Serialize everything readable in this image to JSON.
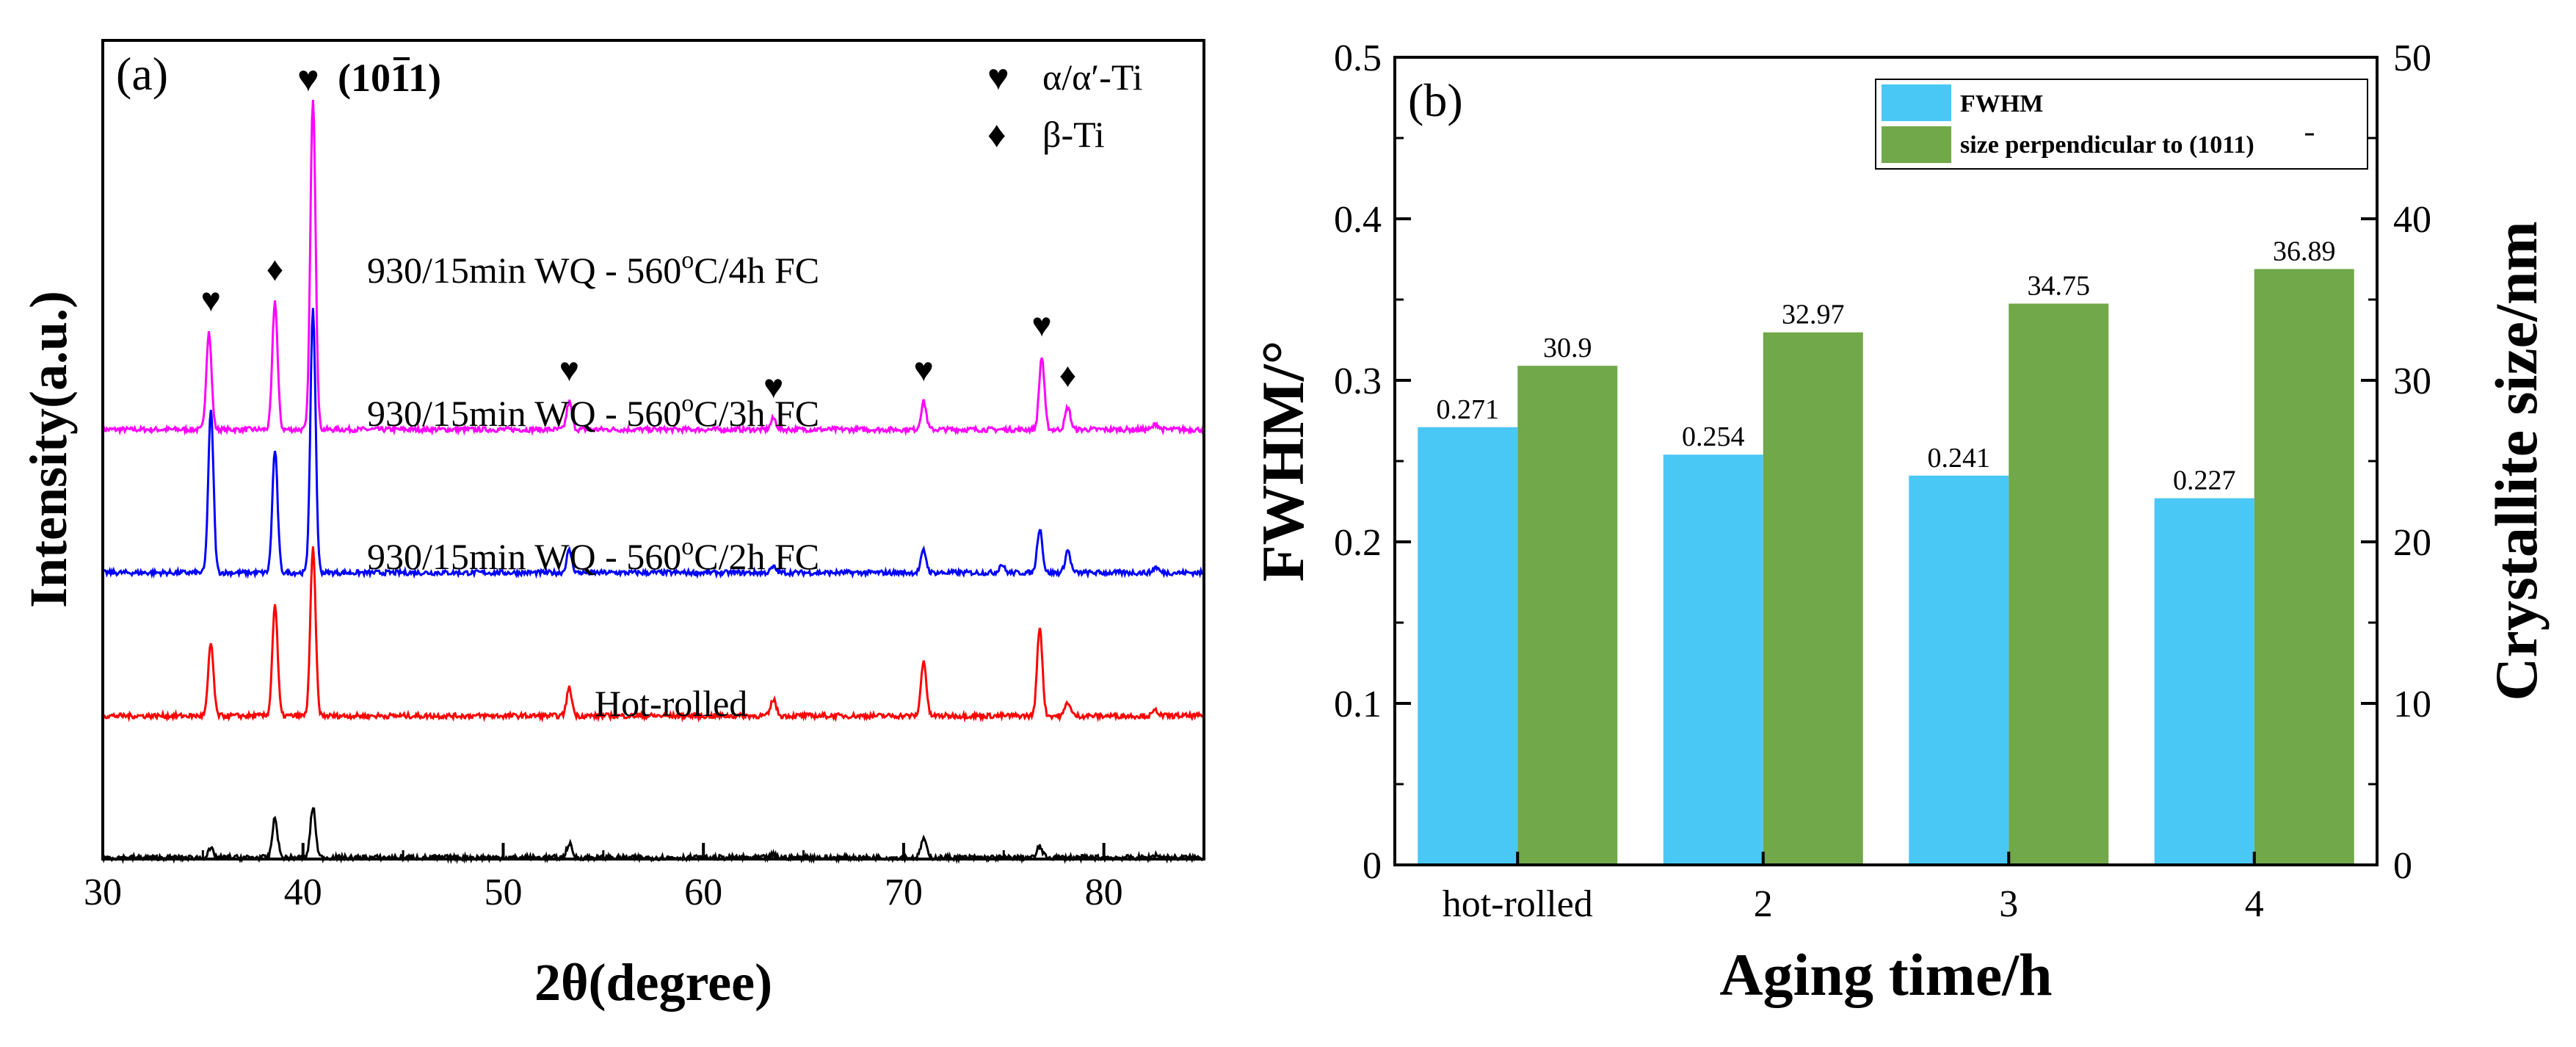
{
  "chart_data": [
    {
      "type": "line",
      "panel_label": "(a)",
      "xlabel": "2θ(degree)",
      "ylabel": "Intensity(a.u.)",
      "xlim": [
        30,
        85
      ],
      "xticks": [
        "30",
        "40",
        "50",
        "60",
        "70",
        "80"
      ],
      "peak_label": "(1011)",
      "legend": [
        {
          "symbol": "♥",
          "label": "α/α′-Ti"
        },
        {
          "symbol": "♦",
          "label": "β-Ti"
        }
      ],
      "series": [
        {
          "name": "930/15min WQ - 560°C/4h FC",
          "label_parts": [
            "930/15min WQ - 560",
            "o",
            "C/4h FC"
          ],
          "color": "#ff00ff",
          "offset": 3,
          "peaks": [
            [
              35.3,
              0.35
            ],
            [
              38.6,
              0.46
            ],
            [
              40.5,
              1.19
            ],
            [
              53.3,
              0.1
            ],
            [
              63.5,
              0.04
            ],
            [
              71.0,
              0.1
            ],
            [
              76.9,
              0.26
            ],
            [
              78.2,
              0.08
            ],
            [
              82.6,
              0.02
            ]
          ]
        },
        {
          "name": "930/15min WQ - 560°C/3h FC",
          "label_parts": [
            "930/15min WQ - 560",
            "o",
            "C/3h FC"
          ],
          "color": "#0000ff",
          "offset": 2,
          "peaks": [
            [
              35.4,
              0.58
            ],
            [
              38.6,
              0.44
            ],
            [
              40.5,
              0.94
            ],
            [
              53.3,
              0.08
            ],
            [
              63.5,
              0.02
            ],
            [
              71.0,
              0.08
            ],
            [
              74.9,
              0.03
            ],
            [
              76.8,
              0.16
            ],
            [
              78.2,
              0.08
            ],
            [
              82.6,
              0.02
            ]
          ]
        },
        {
          "name": "930/15min WQ - 560°C/2h FC",
          "label_parts": [
            "930/15min WQ - 560",
            "o",
            "C/2h FC"
          ],
          "color": "#ff0000",
          "offset": 1,
          "peaks": [
            [
              35.4,
              0.26
            ],
            [
              38.6,
              0.4
            ],
            [
              40.5,
              0.6
            ],
            [
              53.3,
              0.1
            ],
            [
              63.5,
              0.06
            ],
            [
              71.0,
              0.2
            ],
            [
              76.8,
              0.32
            ],
            [
              78.2,
              0.05
            ],
            [
              82.6,
              0.02
            ]
          ]
        },
        {
          "name": "Hot-rolled",
          "label_parts": [
            "Hot-rolled",
            "",
            ""
          ],
          "color": "#000000",
          "offset": 0,
          "peaks": [
            [
              35.4,
              0.03
            ],
            [
              38.6,
              0.14
            ],
            [
              40.5,
              0.18
            ],
            [
              53.3,
              0.05
            ],
            [
              63.5,
              0.01
            ],
            [
              71.0,
              0.07
            ],
            [
              76.8,
              0.04
            ],
            [
              82.6,
              0.01
            ]
          ]
        }
      ],
      "peak_markers": [
        {
          "x": 35.4,
          "symbol": "♥"
        },
        {
          "x": 38.6,
          "symbol": "♦"
        },
        {
          "x": 53.3,
          "symbol": "♥"
        },
        {
          "x": 63.5,
          "symbol": "♥"
        },
        {
          "x": 71.0,
          "symbol": "♥"
        },
        {
          "x": 76.9,
          "symbol": "♥"
        },
        {
          "x": 78.2,
          "symbol": "♦"
        }
      ]
    },
    {
      "type": "bar",
      "panel_label": "(b)",
      "xlabel": "Aging time/h",
      "ylabel": "FWHM/°",
      "y2label": "Crystallite size/nm",
      "categories": [
        "hot-rolled",
        "2",
        "3",
        "4"
      ],
      "ylim": [
        0,
        0.5
      ],
      "y2lim": [
        0,
        50
      ],
      "yticks": [
        "0",
        "0.1",
        "0.2",
        "0.3",
        "0.4",
        "0.5"
      ],
      "y2ticks": [
        "0",
        "10",
        "20",
        "30",
        "40",
        "50"
      ],
      "legend_position": "top-right",
      "series": [
        {
          "name": "FWHM",
          "axis": "left",
          "color": "#4ac8f5",
          "values": [
            0.271,
            0.254,
            0.241,
            0.227
          ],
          "labels": [
            "0.271",
            "0.254",
            "0.241",
            "0.227"
          ]
        },
        {
          "name": "size perpendicular to (1011)",
          "axis": "right",
          "color": "#70a84a",
          "values": [
            30.9,
            32.97,
            34.75,
            36.89
          ],
          "labels": [
            "30.9",
            "32.97",
            "34.75",
            "36.89"
          ]
        }
      ]
    }
  ]
}
